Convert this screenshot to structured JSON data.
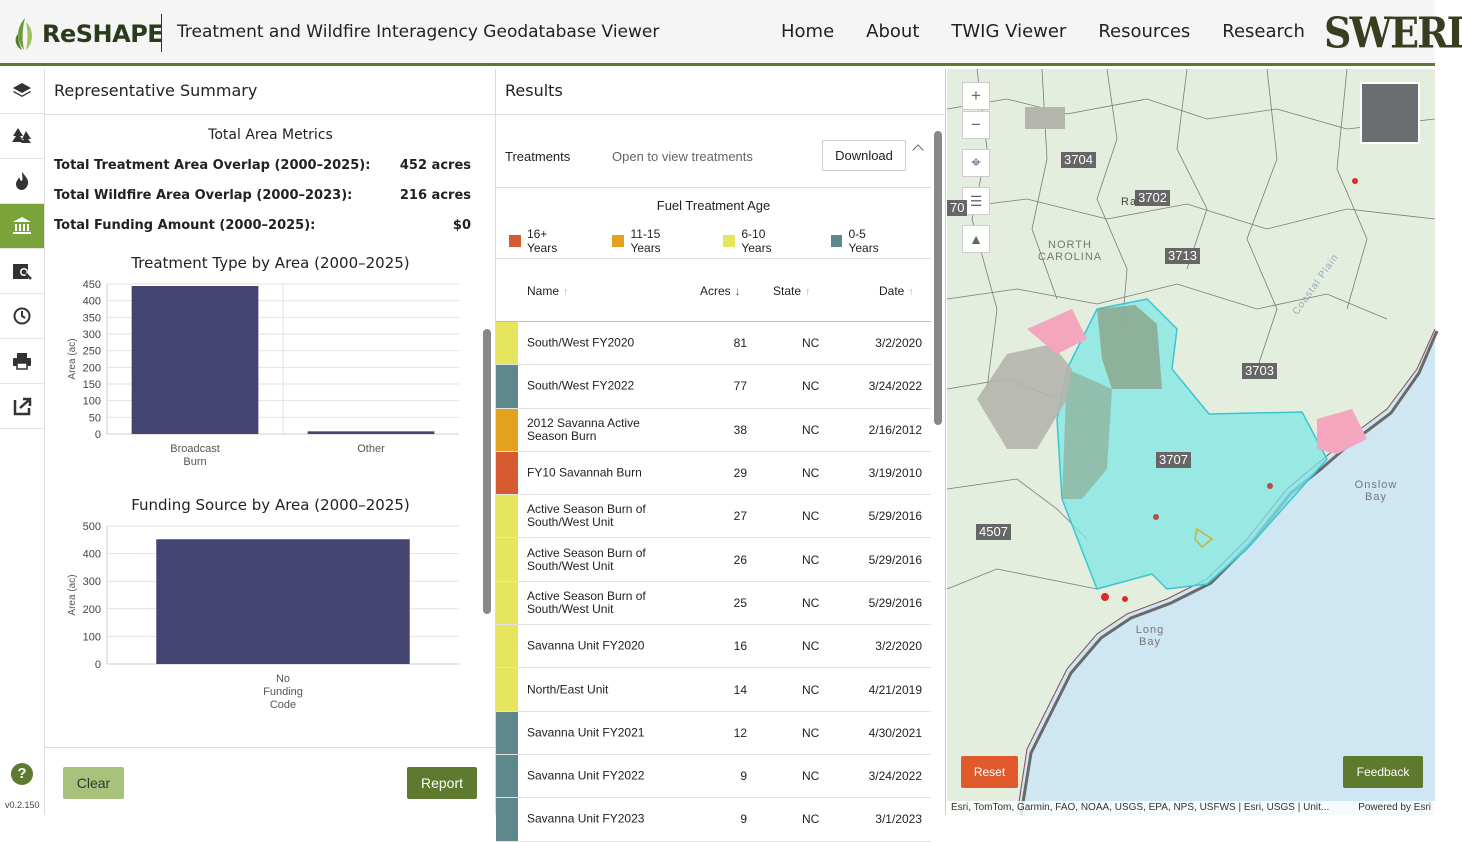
{
  "header": {
    "brand": "ReSHAPE",
    "app_title": "Treatment and Wildfire Interagency Geodatabase Viewer",
    "nav": [
      "Home",
      "About",
      "TWIG Viewer",
      "Resources",
      "Research"
    ],
    "partner_logo": "SWERI"
  },
  "rail": {
    "icons": [
      "layers-icon",
      "trees-icon",
      "fire-icon",
      "institution-icon",
      "map-search-icon",
      "history-icon",
      "print-icon",
      "export-icon"
    ],
    "active_index": 3,
    "version": "v0.2.150"
  },
  "summary": {
    "title": "Representative Summary",
    "metrics_title": "Total Area Metrics",
    "metrics": [
      {
        "label": "Total Treatment Area Overlap (2000–2025):",
        "value": "452 acres"
      },
      {
        "label": "Total Wildfire Area Overlap (2000–2023):",
        "value": "216 acres"
      },
      {
        "label": "Total Funding Amount (2000–2025):",
        "value": "$0"
      }
    ],
    "clear_label": "Clear",
    "report_label": "Report"
  },
  "chart_data": [
    {
      "type": "bar",
      "title": "Treatment Type by Area (2000–2025)",
      "ylabel": "Area (ac)",
      "categories": [
        "Broadcast Burn",
        "Other"
      ],
      "values": [
        444,
        8
      ],
      "ylim": [
        0,
        450
      ],
      "yticks": [
        0,
        50,
        100,
        150,
        200,
        250,
        300,
        350,
        400,
        450
      ],
      "color": "#434570"
    },
    {
      "type": "bar",
      "title": "Funding Source by Area (2000–2025)",
      "ylabel": "Area (ac)",
      "categories": [
        "No Funding Code"
      ],
      "values": [
        452
      ],
      "ylim": [
        0,
        500
      ],
      "yticks": [
        0,
        100,
        200,
        300,
        400,
        500
      ],
      "color": "#434570"
    }
  ],
  "results": {
    "title": "Results",
    "treatments_label": "Treatments",
    "treatments_hint": "Open to view treatments",
    "download_label": "Download",
    "legend_title": "Fuel Treatment Age",
    "legend": [
      {
        "label": "16+ Years",
        "color": "#d65a30"
      },
      {
        "label": "11-15 Years",
        "color": "#e4a11f"
      },
      {
        "label": "6-10 Years",
        "color": "#e7e45d"
      },
      {
        "label": "0-5 Years",
        "color": "#5f888c"
      }
    ],
    "columns": {
      "name": "Name",
      "acres": "Acres",
      "state": "State",
      "date": "Date"
    },
    "rows": [
      {
        "name": "South/West FY2020",
        "acres": "81",
        "state": "NC",
        "date": "3/2/2020",
        "color": "#e7e45d"
      },
      {
        "name": "South/West FY2022",
        "acres": "77",
        "state": "NC",
        "date": "3/24/2022",
        "color": "#5f888c"
      },
      {
        "name": "2012 Savanna Active Season Burn",
        "acres": "38",
        "state": "NC",
        "date": "2/16/2012",
        "color": "#e4a11f"
      },
      {
        "name": "FY10 Savannah Burn",
        "acres": "29",
        "state": "NC",
        "date": "3/19/2010",
        "color": "#d65a30"
      },
      {
        "name": "Active Season Burn of South/West Unit",
        "acres": "27",
        "state": "NC",
        "date": "5/29/2016",
        "color": "#e7e45d"
      },
      {
        "name": "Active Season Burn of South/West Unit",
        "acres": "26",
        "state": "NC",
        "date": "5/29/2016",
        "color": "#e7e45d"
      },
      {
        "name": "Active Season Burn of South/West Unit",
        "acres": "25",
        "state": "NC",
        "date": "5/29/2016",
        "color": "#e7e45d"
      },
      {
        "name": "Savanna Unit FY2020",
        "acres": "16",
        "state": "NC",
        "date": "3/2/2020",
        "color": "#e7e45d"
      },
      {
        "name": "North/East Unit",
        "acres": "14",
        "state": "NC",
        "date": "4/21/2019",
        "color": "#e7e45d"
      },
      {
        "name": "Savanna Unit FY2021",
        "acres": "12",
        "state": "NC",
        "date": "4/30/2021",
        "color": "#5f888c"
      },
      {
        "name": "Savanna Unit FY2022",
        "acres": "9",
        "state": "NC",
        "date": "3/24/2022",
        "color": "#5f888c"
      },
      {
        "name": "Savanna Unit FY2023",
        "acres": "9",
        "state": "NC",
        "date": "3/1/2023",
        "color": "#5f888c"
      }
    ]
  },
  "map": {
    "region_labels": [
      "3704",
      "3702",
      "3713",
      "3703",
      "3707",
      "4507",
      "70"
    ],
    "place_labels": {
      "raleigh": "Ral",
      "state": "NORTH CAROLINA",
      "onslow": "Onslow Bay",
      "long_bay": "Long Bay",
      "coastal": "Coastal Plain"
    },
    "reset_label": "Reset",
    "feedback_label": "Feedback",
    "attribution": "Esri, TomTom, Garmin, FAO, NOAA, USGS, EPA, NPS, USFWS | Esri, USGS | Unit...",
    "powered_by": "Powered by Esri"
  }
}
